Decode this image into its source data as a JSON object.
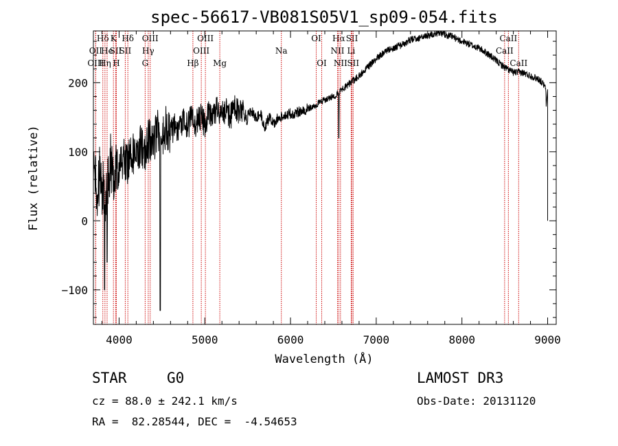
{
  "colors": {
    "line_marker": "#cc0000",
    "spectrum": "#000000",
    "axes": "#000000",
    "background": "#ffffff"
  },
  "info": {
    "class": "STAR",
    "subclass": "G0",
    "survey": "LAMOST DR3",
    "cz_text": "cz = 88.0 ± 242.1 km/s",
    "obs_date": "Obs-Date: 20131120",
    "coords_text": "RA =  82.28544, DEC =  -4.54653"
  },
  "chart_data": {
    "type": "line",
    "title": "spec-56617-VB081S05V1_sp09-054.fits",
    "xlabel": "Wavelength (Å)",
    "ylabel": "Flux (relative)",
    "xlim": [
      3700,
      9100
    ],
    "ylim": [
      -150,
      275
    ],
    "xticks": [
      4000,
      5000,
      6000,
      7000,
      8000,
      9000
    ],
    "yticks": [
      -100,
      0,
      100,
      200
    ],
    "series": [
      {
        "name": "flux",
        "x": [
          3700,
          3750,
          3780,
          3800,
          3820,
          3840,
          3860,
          3880,
          3900,
          3930,
          3960,
          4000,
          4050,
          4100,
          4150,
          4200,
          4250,
          4300,
          4350,
          4400,
          4450,
          4500,
          4550,
          4600,
          4650,
          4700,
          4750,
          4800,
          4850,
          4900,
          4950,
          5000,
          5050,
          5100,
          5150,
          5200,
          5250,
          5300,
          5350,
          5400,
          5450,
          5500,
          5550,
          5600,
          5650,
          5700,
          5750,
          5800,
          5850,
          5900,
          5950,
          6000,
          6100,
          6200,
          6300,
          6400,
          6500,
          6560,
          6600,
          6650,
          6700,
          6800,
          6900,
          7000,
          7100,
          7200,
          7300,
          7400,
          7500,
          7600,
          7700,
          7800,
          7900,
          8000,
          8100,
          8200,
          8300,
          8400,
          8500,
          8600,
          8700,
          8800,
          8900,
          8950,
          8980,
          9000
        ],
        "values": [
          60,
          40,
          70,
          20,
          60,
          30,
          75,
          50,
          85,
          65,
          90,
          80,
          95,
          85,
          100,
          90,
          110,
          95,
          120,
          110,
          135,
          120,
          135,
          125,
          140,
          130,
          145,
          135,
          155,
          140,
          150,
          140,
          160,
          150,
          165,
          155,
          160,
          150,
          165,
          155,
          160,
          152,
          158,
          150,
          155,
          135,
          150,
          140,
          150,
          152,
          152,
          155,
          158,
          162,
          168,
          175,
          180,
          185,
          190,
          195,
          200,
          210,
          222,
          235,
          245,
          250,
          255,
          262,
          265,
          268,
          272,
          270,
          266,
          260,
          255,
          250,
          242,
          232,
          222,
          215,
          215,
          210,
          205,
          198,
          190,
          0
        ]
      }
    ],
    "absorption_features": [
      {
        "name": "deep-dip-3830",
        "x": 3830,
        "value": -100
      },
      {
        "name": "deep-dip-3860",
        "x": 3860,
        "value": -60
      },
      {
        "name": "deep-dip-4480",
        "x": 4480,
        "value": -130
      },
      {
        "name": "halpha-dip",
        "x": 6563,
        "value": 120
      }
    ],
    "line_markers": [
      {
        "label": "Hδ",
        "x": 3810,
        "row": 0
      },
      {
        "label": "OII",
        "x": 3727,
        "row": 1
      },
      {
        "label": "OIII",
        "x": 3727,
        "row": 2
      },
      {
        "label": "He",
        "x": 3860,
        "row": 1
      },
      {
        "label": "Hη",
        "x": 3835,
        "row": 2
      },
      {
        "label": "K",
        "x": 3934,
        "row": 0
      },
      {
        "label": "SII",
        "x": 3960,
        "row": 1
      },
      {
        "label": "H",
        "x": 3968,
        "row": 2
      },
      {
        "label": "Hδ",
        "x": 4102,
        "row": 0
      },
      {
        "label": "SII",
        "x": 4072,
        "row": 1
      },
      {
        "label": "OIII",
        "x": 4363,
        "row": 0
      },
      {
        "label": "Hγ",
        "x": 4340,
        "row": 1
      },
      {
        "label": "G",
        "x": 4304,
        "row": 2
      },
      {
        "label": "Hβ",
        "x": 4861,
        "row": 2
      },
      {
        "label": "OIII",
        "x": 5007,
        "row": 0
      },
      {
        "label": "OIII",
        "x": 4959,
        "row": 1
      },
      {
        "label": "Mg",
        "x": 5175,
        "row": 2
      },
      {
        "label": "Na",
        "x": 5893,
        "row": 1
      },
      {
        "label": "OI",
        "x": 6300,
        "row": 0
      },
      {
        "label": "OI",
        "x": 6364,
        "row": 2
      },
      {
        "label": "Hα",
        "x": 6563,
        "row": 0
      },
      {
        "label": "NII",
        "x": 6548,
        "row": 1
      },
      {
        "label": "NII",
        "x": 6583,
        "row": 2
      },
      {
        "label": "SII",
        "x": 6717,
        "row": 0
      },
      {
        "label": "Li",
        "x": 6708,
        "row": 1
      },
      {
        "label": "SII",
        "x": 6731,
        "row": 2
      },
      {
        "label": "CaII",
        "x": 8542,
        "row": 0
      },
      {
        "label": "CaII",
        "x": 8498,
        "row": 1
      },
      {
        "label": "CaII",
        "x": 8662,
        "row": 2
      }
    ]
  }
}
